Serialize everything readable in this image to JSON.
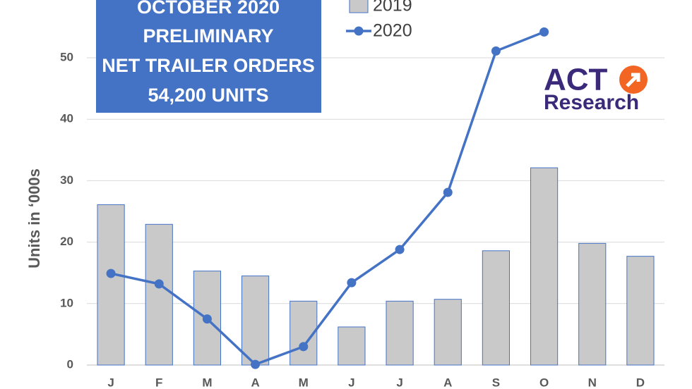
{
  "chart_data": {
    "type": "bar_line",
    "y_label": "Units in ‘000s",
    "annotation": [
      "OCTOBER 2020",
      "PRELIMINARY",
      "NET TRAILER ORDERS",
      "54,200 UNITS"
    ],
    "logo": [
      "ACT",
      "Research"
    ],
    "categories": [
      "J",
      "F",
      "M",
      "A",
      "M",
      "J",
      "J",
      "A",
      "S",
      "O",
      "N",
      "D"
    ],
    "series": [
      {
        "name": "2019",
        "type": "bar",
        "color": "#c9c9c9",
        "values": [
          26.1,
          22.9,
          15.3,
          14.5,
          10.4,
          6.2,
          10.4,
          10.7,
          18.6,
          32.1,
          19.8,
          17.7
        ]
      },
      {
        "name": "2020",
        "type": "line",
        "color": "#4472c4",
        "values": [
          14.9,
          13.2,
          7.5,
          0.1,
          3.0,
          13.4,
          18.8,
          28.1,
          51.1,
          54.2,
          null,
          null
        ]
      }
    ],
    "ylim": [
      0,
      60
    ],
    "yticks": [
      0,
      10,
      20,
      30,
      40,
      50
    ],
    "grid": true
  }
}
